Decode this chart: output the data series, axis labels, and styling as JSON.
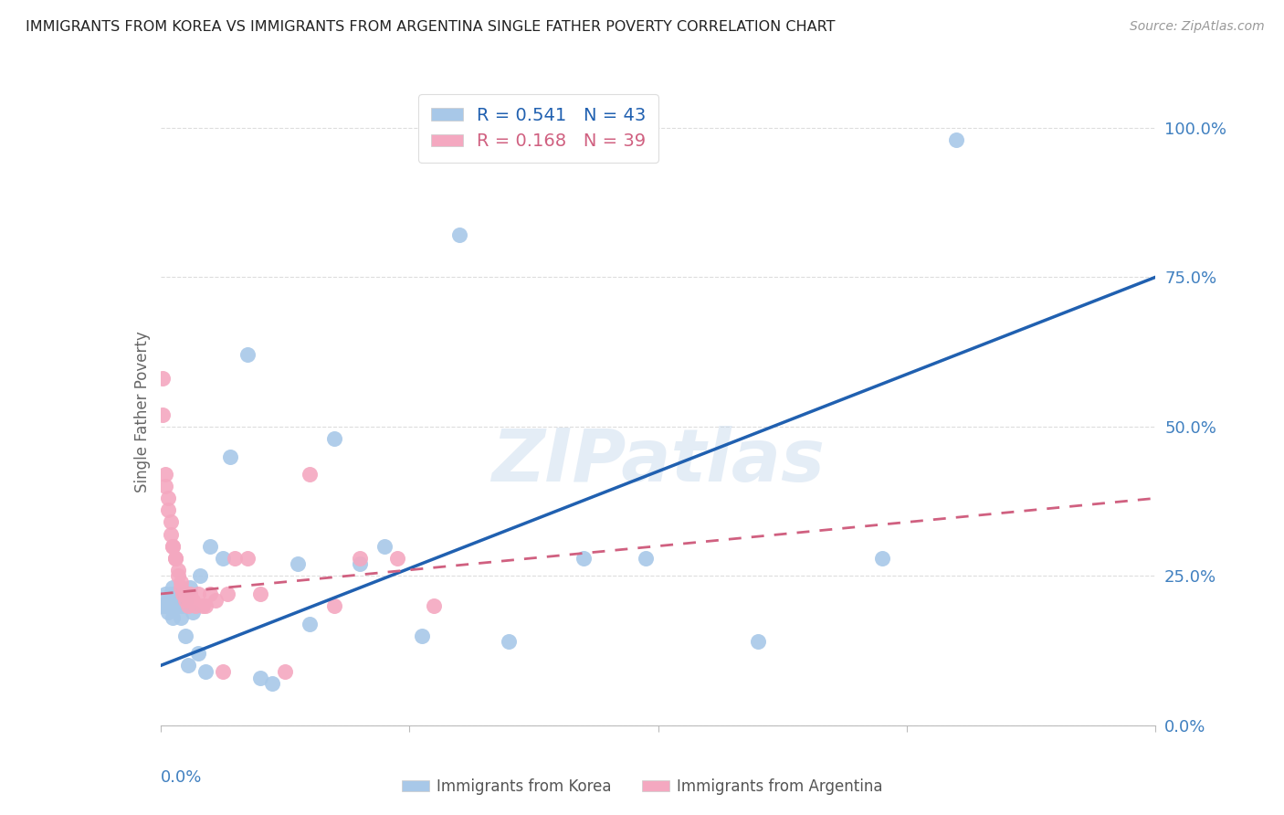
{
  "title": "IMMIGRANTS FROM KOREA VS IMMIGRANTS FROM ARGENTINA SINGLE FATHER POVERTY CORRELATION CHART",
  "source": "Source: ZipAtlas.com",
  "ylabel": "Single Father Poverty",
  "yticks": [
    "0.0%",
    "25.0%",
    "50.0%",
    "75.0%",
    "100.0%"
  ],
  "ytick_vals": [
    0.0,
    0.25,
    0.5,
    0.75,
    1.0
  ],
  "xlim": [
    0.0,
    0.4
  ],
  "ylim": [
    0.0,
    1.05
  ],
  "korea_R": 0.541,
  "korea_N": 43,
  "argentina_R": 0.168,
  "argentina_N": 39,
  "korea_color": "#a8c8e8",
  "argentina_color": "#f4a8c0",
  "korea_line_color": "#2060b0",
  "argentina_line_color": "#d06080",
  "korea_x": [
    0.001,
    0.002,
    0.002,
    0.003,
    0.003,
    0.004,
    0.004,
    0.005,
    0.005,
    0.006,
    0.006,
    0.007,
    0.007,
    0.008,
    0.008,
    0.009,
    0.01,
    0.01,
    0.011,
    0.012,
    0.013,
    0.015,
    0.016,
    0.018,
    0.02,
    0.025,
    0.028,
    0.035,
    0.04,
    0.045,
    0.055,
    0.06,
    0.07,
    0.08,
    0.09,
    0.105,
    0.12,
    0.14,
    0.17,
    0.195,
    0.24,
    0.29,
    0.32
  ],
  "korea_y": [
    0.2,
    0.2,
    0.22,
    0.19,
    0.21,
    0.2,
    0.22,
    0.18,
    0.23,
    0.2,
    0.22,
    0.21,
    0.2,
    0.18,
    0.22,
    0.2,
    0.15,
    0.21,
    0.1,
    0.23,
    0.19,
    0.12,
    0.25,
    0.09,
    0.3,
    0.28,
    0.45,
    0.62,
    0.08,
    0.07,
    0.27,
    0.17,
    0.48,
    0.27,
    0.3,
    0.15,
    0.82,
    0.14,
    0.28,
    0.28,
    0.14,
    0.28,
    0.98
  ],
  "argentina_x": [
    0.001,
    0.001,
    0.002,
    0.002,
    0.003,
    0.003,
    0.004,
    0.004,
    0.005,
    0.005,
    0.006,
    0.006,
    0.007,
    0.007,
    0.008,
    0.008,
    0.009,
    0.01,
    0.01,
    0.011,
    0.012,
    0.013,
    0.014,
    0.015,
    0.017,
    0.018,
    0.02,
    0.022,
    0.025,
    0.027,
    0.03,
    0.035,
    0.04,
    0.05,
    0.06,
    0.07,
    0.08,
    0.095,
    0.11
  ],
  "argentina_y": [
    0.58,
    0.52,
    0.42,
    0.4,
    0.38,
    0.36,
    0.34,
    0.32,
    0.3,
    0.3,
    0.28,
    0.28,
    0.26,
    0.25,
    0.24,
    0.23,
    0.22,
    0.22,
    0.21,
    0.2,
    0.22,
    0.21,
    0.2,
    0.22,
    0.2,
    0.2,
    0.22,
    0.21,
    0.09,
    0.22,
    0.28,
    0.28,
    0.22,
    0.09,
    0.42,
    0.2,
    0.28,
    0.28,
    0.2
  ],
  "background_color": "#ffffff",
  "grid_color": "#dddddd",
  "title_color": "#222222",
  "tick_label_color": "#4080c0"
}
